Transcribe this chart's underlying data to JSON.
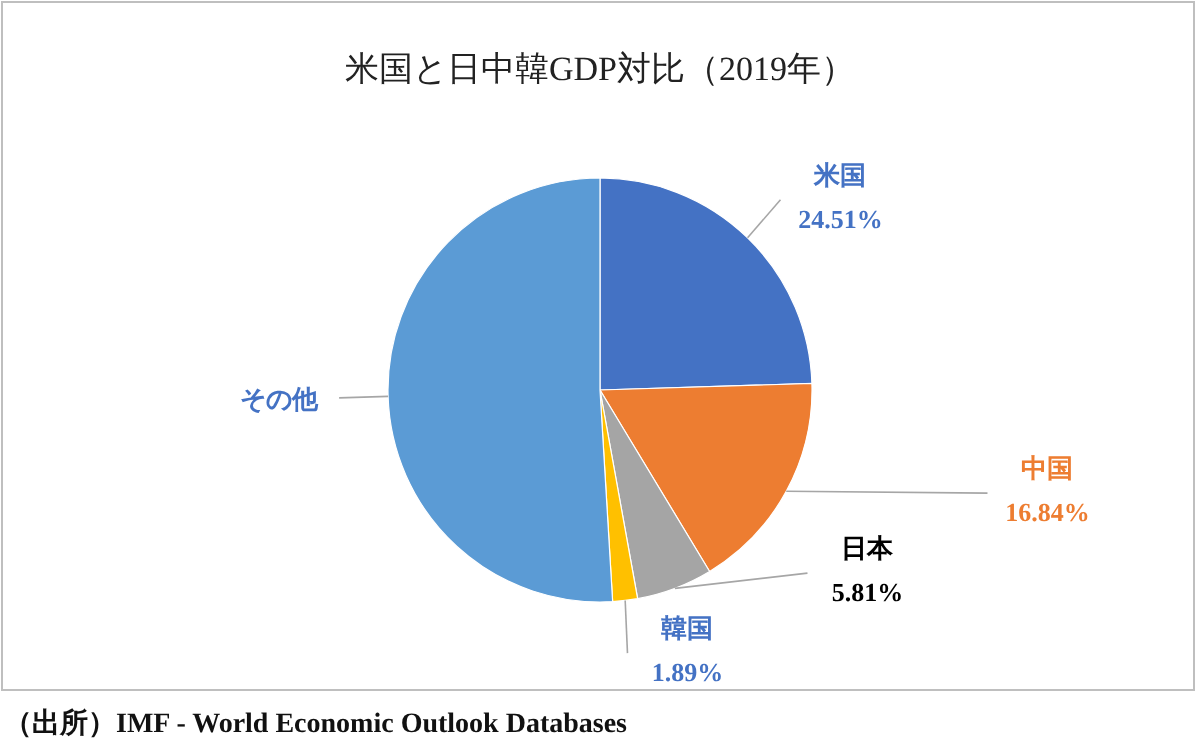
{
  "chart_data": {
    "type": "pie",
    "title": "米国と日中韓GDP対比（2019年）",
    "categories": [
      "米国",
      "中国",
      "日本",
      "韓国",
      "その他"
    ],
    "values": [
      24.51,
      16.84,
      5.81,
      1.89,
      50.95
    ],
    "colors": [
      "#4472c4",
      "#ed7d31",
      "#a5a5a5",
      "#ffc000",
      "#5b9bd5"
    ],
    "value_labels": [
      "24.51%",
      "16.84%",
      "5.81%",
      "1.89%",
      null
    ],
    "annotations": [
      "（出所）IMF - World Economic Outlook Databases"
    ]
  }
}
